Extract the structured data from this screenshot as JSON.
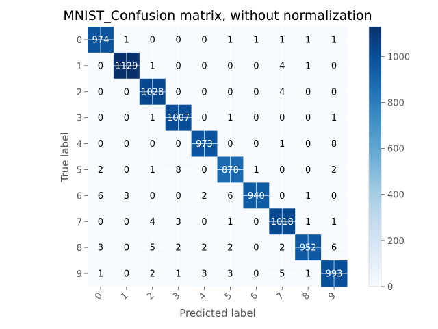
{
  "chart_data": {
    "type": "heatmap",
    "title": "MNIST_Confusion matrix, without normalization",
    "xlabel": "Predicted label",
    "ylabel": "True label",
    "x_categories": [
      "0",
      "1",
      "2",
      "3",
      "4",
      "5",
      "6",
      "7",
      "8",
      "9"
    ],
    "y_categories": [
      "0",
      "1",
      "2",
      "3",
      "4",
      "5",
      "6",
      "7",
      "8",
      "9"
    ],
    "matrix": [
      [
        974,
        1,
        0,
        0,
        0,
        1,
        1,
        1,
        1,
        1
      ],
      [
        0,
        1129,
        1,
        0,
        0,
        0,
        0,
        4,
        1,
        0
      ],
      [
        0,
        0,
        1028,
        0,
        0,
        0,
        0,
        4,
        0,
        0
      ],
      [
        0,
        0,
        1,
        1007,
        0,
        1,
        0,
        0,
        0,
        1
      ],
      [
        0,
        0,
        0,
        0,
        973,
        0,
        0,
        1,
        0,
        8
      ],
      [
        2,
        0,
        1,
        8,
        0,
        878,
        1,
        0,
        0,
        2
      ],
      [
        6,
        3,
        0,
        0,
        2,
        6,
        940,
        0,
        1,
        0
      ],
      [
        0,
        0,
        4,
        3,
        0,
        1,
        0,
        1018,
        1,
        1
      ],
      [
        3,
        0,
        5,
        2,
        2,
        2,
        0,
        2,
        952,
        6
      ],
      [
        1,
        0,
        2,
        1,
        3,
        3,
        0,
        5,
        1,
        993
      ]
    ],
    "colorscale": "Blues",
    "vmin": 0,
    "vmax": 1129,
    "colorbar_ticks": [
      0,
      200,
      400,
      600,
      800,
      1000
    ],
    "grid": true,
    "colors": {
      "low": "#f7fbff",
      "high": "#08306b",
      "text_dark": "#000000",
      "text_light": "#ffffff"
    }
  }
}
